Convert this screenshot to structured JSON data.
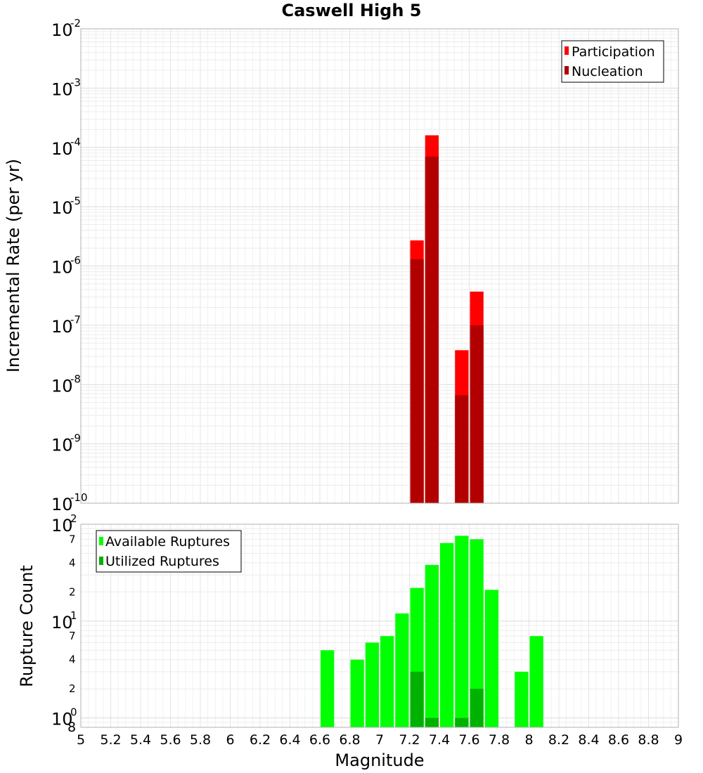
{
  "chart_data": [
    {
      "type": "bar",
      "scale": "log",
      "title": "Caswell High 5",
      "xlabel": "",
      "ylabel": "Incremental Rate (per yr)",
      "xlim": [
        5,
        9
      ],
      "ylim": [
        1e-10,
        0.01
      ],
      "y_ticks": [
        {
          "base": "10",
          "exp": "-2",
          "value": 0.01
        },
        {
          "base": "10",
          "exp": "-3",
          "value": 0.001
        },
        {
          "base": "10",
          "exp": "-4",
          "value": 0.0001
        },
        {
          "base": "10",
          "exp": "-5",
          "value": 1e-05
        },
        {
          "base": "10",
          "exp": "-6",
          "value": 1e-06
        },
        {
          "base": "10",
          "exp": "-7",
          "value": 1e-07
        },
        {
          "base": "10",
          "exp": "-8",
          "value": 1e-08
        },
        {
          "base": "10",
          "exp": "-9",
          "value": 1e-09
        },
        {
          "base": "10",
          "exp": "-10",
          "value": 1e-10
        }
      ],
      "legend": {
        "position": "top-right",
        "entries": [
          "Participation",
          "Nucleation"
        ]
      },
      "colors": {
        "Participation": "#ff0000",
        "Nucleation": "#b20000"
      },
      "bin_width": 0.1,
      "x": [
        7.25,
        7.35,
        7.55,
        7.65
      ],
      "series": [
        {
          "name": "Participation",
          "values": [
            2.7e-06,
            0.00016,
            3.8e-08,
            3.7e-07
          ]
        },
        {
          "name": "Nucleation",
          "values": [
            1.3e-06,
            7e-05,
            6.6e-09,
            1e-07
          ]
        }
      ]
    },
    {
      "type": "bar",
      "scale": "log",
      "xlabel": "Magnitude",
      "ylabel": "Rupture Count",
      "xlim": [
        5,
        9
      ],
      "ylim": [
        0.8,
        100
      ],
      "x_ticks": [
        "5",
        "5.2",
        "5.4",
        "5.6",
        "5.8",
        "6",
        "6.2",
        "6.4",
        "6.6",
        "6.8",
        "7",
        "7.2",
        "7.4",
        "7.6",
        "7.8",
        "8",
        "8.2",
        "8.4",
        "8.6",
        "8.8",
        "9"
      ],
      "y_major_ticks": [
        {
          "base": "10",
          "exp": "2",
          "value": 100
        },
        {
          "base": "10",
          "exp": "1",
          "value": 10
        },
        {
          "base": "10",
          "exp": "0",
          "value": 1
        }
      ],
      "y_minor_ticks": [
        {
          "label": "7",
          "value": 70
        },
        {
          "label": "4",
          "value": 40
        },
        {
          "label": "2",
          "value": 20
        },
        {
          "label": "7",
          "value": 7
        },
        {
          "label": "4",
          "value": 4
        },
        {
          "label": "2",
          "value": 2
        },
        {
          "label": "8",
          "value": 0.8
        }
      ],
      "legend": {
        "position": "top-left",
        "entries": [
          "Available Ruptures",
          "Utilized Ruptures"
        ]
      },
      "colors": {
        "Available Ruptures": "#00ff00",
        "Utilized Ruptures": "#00b200"
      },
      "bin_width": 0.1,
      "x": [
        6.65,
        6.85,
        6.95,
        7.05,
        7.15,
        7.25,
        7.35,
        7.45,
        7.55,
        7.65,
        7.75,
        7.95,
        8.05
      ],
      "series": [
        {
          "name": "Available Ruptures",
          "values": [
            5,
            4,
            6,
            7,
            12,
            22,
            38,
            64,
            76,
            70,
            21,
            3,
            7
          ]
        },
        {
          "name": "Utilized Ruptures",
          "values": [
            null,
            null,
            null,
            null,
            null,
            3,
            1,
            null,
            1,
            2,
            null,
            null,
            null
          ]
        }
      ]
    }
  ]
}
